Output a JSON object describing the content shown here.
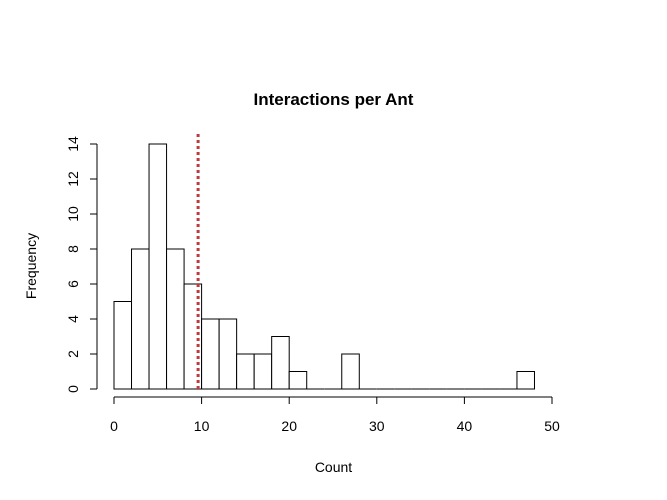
{
  "chart_data": {
    "type": "histogram",
    "title": "Interactions per Ant",
    "xlabel": "Count",
    "ylabel": "Frequency",
    "bin_width": 2,
    "bins": [
      {
        "start": 0,
        "end": 2,
        "count": 5
      },
      {
        "start": 2,
        "end": 4,
        "count": 8
      },
      {
        "start": 4,
        "end": 6,
        "count": 14
      },
      {
        "start": 6,
        "end": 8,
        "count": 8
      },
      {
        "start": 8,
        "end": 10,
        "count": 6
      },
      {
        "start": 10,
        "end": 12,
        "count": 4
      },
      {
        "start": 12,
        "end": 14,
        "count": 4
      },
      {
        "start": 14,
        "end": 16,
        "count": 2
      },
      {
        "start": 16,
        "end": 18,
        "count": 2
      },
      {
        "start": 18,
        "end": 20,
        "count": 3
      },
      {
        "start": 20,
        "end": 22,
        "count": 1
      },
      {
        "start": 22,
        "end": 24,
        "count": 0
      },
      {
        "start": 24,
        "end": 26,
        "count": 0
      },
      {
        "start": 26,
        "end": 28,
        "count": 2
      },
      {
        "start": 28,
        "end": 30,
        "count": 0
      },
      {
        "start": 30,
        "end": 32,
        "count": 0
      },
      {
        "start": 32,
        "end": 34,
        "count": 0
      },
      {
        "start": 34,
        "end": 36,
        "count": 0
      },
      {
        "start": 36,
        "end": 38,
        "count": 0
      },
      {
        "start": 38,
        "end": 40,
        "count": 0
      },
      {
        "start": 40,
        "end": 42,
        "count": 0
      },
      {
        "start": 42,
        "end": 44,
        "count": 0
      },
      {
        "start": 44,
        "end": 46,
        "count": 0
      },
      {
        "start": 46,
        "end": 48,
        "count": 1
      }
    ],
    "xlim": [
      0,
      50
    ],
    "ylim": [
      0,
      14
    ],
    "x_ticks": [
      0,
      10,
      20,
      30,
      40,
      50
    ],
    "y_ticks": [
      0,
      2,
      4,
      6,
      8,
      10,
      12,
      14
    ],
    "reference_line": {
      "x": 9.6,
      "style": "dashed",
      "color": "#c0393b"
    },
    "bar_fill": "#ffffff",
    "bar_stroke": "#000000",
    "grid": false
  }
}
